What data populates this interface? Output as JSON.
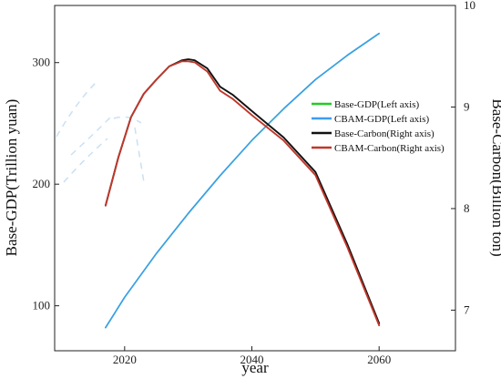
{
  "chart_data": {
    "type": "line",
    "xlabel": "year",
    "ylabel_left": "Base-GDP(Trillion yuan)",
    "ylabel_right": "Base-Carbon(Billion ton)",
    "xlim": [
      2009,
      2072
    ],
    "ylim_left": [
      63,
      347
    ],
    "ylim_right": [
      6.6,
      10.0
    ],
    "x_ticks": [
      2020,
      2040,
      2060
    ],
    "y_ticks_left": [
      100,
      200,
      300
    ],
    "y_ticks_right": [
      7,
      8,
      9,
      10
    ],
    "grid": false,
    "legend_position": "center-right",
    "series": [
      {
        "name": "Base-GDP(Left axis)",
        "axis": "left",
        "color": "#22cc22",
        "x": [
          2017,
          2020,
          2025,
          2030,
          2035,
          2040,
          2045,
          2050,
          2055,
          2060
        ],
        "y": [
          82,
          107,
          143,
          176,
          207,
          236,
          262,
          286,
          306,
          324
        ]
      },
      {
        "name": "CBAM-GDP(Left axis)",
        "axis": "left",
        "color": "#3d9df2",
        "x": [
          2017,
          2020,
          2025,
          2030,
          2035,
          2040,
          2045,
          2050,
          2055,
          2060
        ],
        "y": [
          82,
          107,
          143,
          176,
          207,
          236,
          262,
          286,
          306,
          324
        ]
      },
      {
        "name": "Base-Carbon(Right axis)",
        "axis": "right",
        "color": "#111111",
        "x": [
          2017,
          2019,
          2021,
          2023,
          2025,
          2027,
          2029,
          2030,
          2031,
          2033,
          2035,
          2037,
          2040,
          2045,
          2050,
          2055,
          2060
        ],
        "y": [
          8.03,
          8.5,
          8.9,
          9.13,
          9.27,
          9.4,
          9.46,
          9.47,
          9.46,
          9.38,
          9.2,
          9.12,
          8.96,
          8.7,
          8.36,
          7.65,
          6.87
        ]
      },
      {
        "name": "CBAM-Carbon(Right axis)",
        "axis": "right",
        "color": "#c0382b",
        "x": [
          2017,
          2019,
          2021,
          2023,
          2025,
          2027,
          2029,
          2030,
          2031,
          2033,
          2035,
          2037,
          2040,
          2045,
          2050,
          2055,
          2060
        ],
        "y": [
          8.03,
          8.5,
          8.9,
          9.13,
          9.27,
          9.4,
          9.45,
          9.45,
          9.44,
          9.35,
          9.16,
          9.08,
          8.92,
          8.67,
          8.33,
          7.62,
          6.85
        ]
      }
    ]
  }
}
